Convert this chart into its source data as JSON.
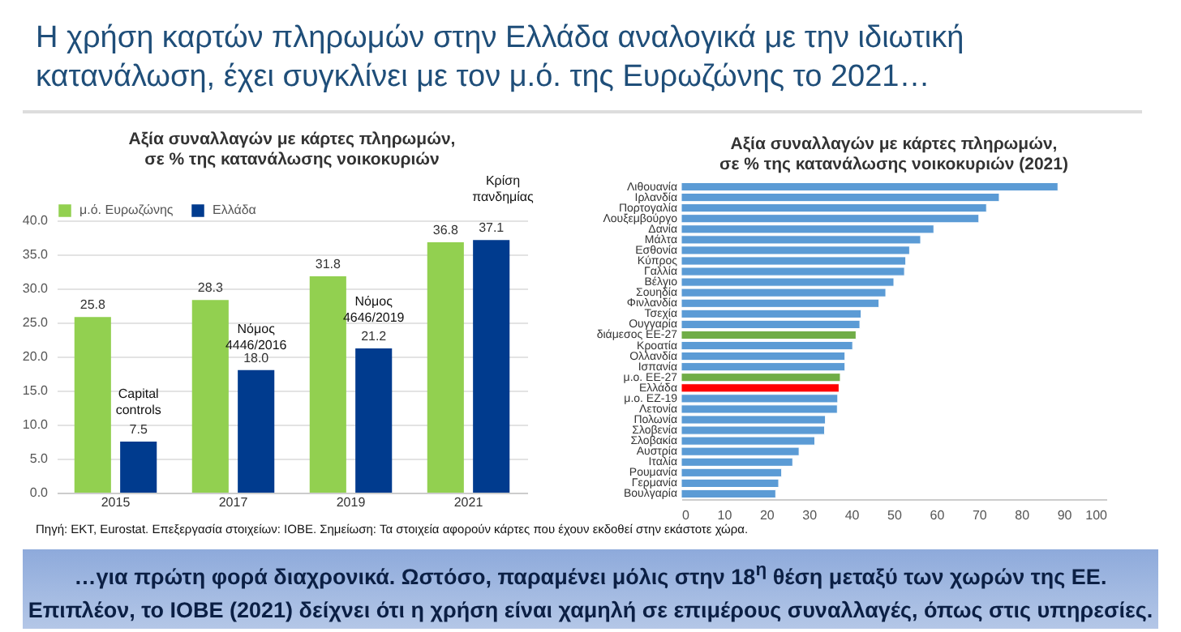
{
  "chart_data": [
    {
      "type": "bar",
      "title": "Αξία συναλλαγών με κάρτες πληρωμών,\nσε % της κατανάλωσης νοικοκυριών",
      "categories": [
        "2015",
        "2017",
        "2019",
        "2021"
      ],
      "series": [
        {
          "name": "μ.ό. Ευρωζώνης",
          "color": "#92d050",
          "values": [
            25.8,
            28.3,
            31.8,
            36.8
          ],
          "value_labels": [
            "25.8",
            "28.3",
            "31.8",
            "36.8"
          ]
        },
        {
          "name": "Ελλάδα",
          "color": "#003b8e",
          "values": [
            7.5,
            18.0,
            21.2,
            37.1
          ],
          "value_labels": [
            "7.5",
            "18.0",
            "21.2",
            "37.1"
          ]
        }
      ],
      "ylim": [
        0,
        40
      ],
      "yticks": [
        {
          "value": 0,
          "label": "0.0"
        },
        {
          "value": 5,
          "label": "5.0"
        },
        {
          "value": 10,
          "label": "10.0"
        },
        {
          "value": 15,
          "label": "15.0"
        },
        {
          "value": 20,
          "label": "20.0"
        },
        {
          "value": 25,
          "label": "25.0"
        },
        {
          "value": 30,
          "label": "30.0"
        },
        {
          "value": 35,
          "label": "35.0"
        },
        {
          "value": 40,
          "label": "40.0"
        }
      ],
      "grid": "y",
      "legend": "top",
      "annotations": [
        {
          "text": "Capital controls",
          "x": "2015",
          "y": 13
        },
        {
          "text": "Νόμος 4446/2016",
          "x": "2017",
          "y": 22.5
        },
        {
          "text": "Νόμος 4646/2019",
          "x": "2019",
          "y": 26.5
        },
        "Η χρήση καρτών πληρωμών στην Ελλάδα αναλογικά με την ιδιωτική κατανάλωση, έχει συγκλίνει με τον μ.ό. της Ευρωζώνης το 2021…",
        "Πηγή: ΕΚΤ, Eurostat. Επεξεργασία στοιχείων: ΙΟΒΕ. Σημείωση: Τα στοιχεία αφορούν κάρτες που έχουν εκδοθεί στην εκάστοτε χώρα.",
        "…για πρώτη φορά διαχρονικά. Ωστόσο, παραμένει μόλις στην 18$^{η}$ θέση μεταξύ των χωρών της ΕΕ. Επιπλέον, το ΙΟΒΕ (2021) δείχνει ότι η χρήση είναι χαμηλή σε επιμέρους συναλλαγές, όπως στις υπηρεσίες.",
        "Κρίση πανδημίας"
      ]
    },
    {
      "type": "bar",
      "orientation": "horizontal",
      "title": "Αξία συναλλαγών με κάρτες πληρωμών,\nσε % της κατανάλωσης νοικοκυριών (2021)",
      "categories": [
        "Λιθουανία",
        "Ιρλανδία",
        "Πορτογαλία",
        "Λουξεμβούργο",
        "Δανία",
        "Μάλτα",
        "Εσθονία",
        "Κύπρος",
        "Γαλλία",
        "Βέλγιο",
        "Σουηδία",
        "Φινλανδία",
        "Τσεχία",
        "Ουγγαρία",
        "διάμεσος ΕΕ-27",
        "Κροατία",
        "Ολλανδία",
        "Ισπανία",
        "μ.ο. ΕΕ-27",
        "Ελλάδα",
        "μ.ο. ΕΖ-19",
        "Λετονία",
        "Πολωνία",
        "Σλοβενία",
        "Σλοβακία",
        "Αυστρία",
        "Ιταλία",
        "Ρουμανία",
        "Γερμανία",
        "Βουλγαρία"
      ],
      "values": [
        88.6,
        74.8,
        71.8,
        70.0,
        59.4,
        56.3,
        53.7,
        52.8,
        52.5,
        50.0,
        48.1,
        46.5,
        42.3,
        42.0,
        41.1,
        40.3,
        38.5,
        38.5,
        37.4,
        37.1,
        36.8,
        36.7,
        33.9,
        33.7,
        31.4,
        27.7,
        26.2,
        23.6,
        22.9,
        22.2
      ],
      "colors": [
        "#5b9bd5",
        "#5b9bd5",
        "#5b9bd5",
        "#5b9bd5",
        "#5b9bd5",
        "#5b9bd5",
        "#5b9bd5",
        "#5b9bd5",
        "#5b9bd5",
        "#5b9bd5",
        "#5b9bd5",
        "#5b9bd5",
        "#5b9bd5",
        "#5b9bd5",
        "#70ad47",
        "#5b9bd5",
        "#5b9bd5",
        "#5b9bd5",
        "#70ad47",
        "#ff0000",
        "#5b9bd5",
        "#5b9bd5",
        "#5b9bd5",
        "#5b9bd5",
        "#5b9bd5",
        "#5b9bd5",
        "#5b9bd5",
        "#5b9bd5",
        "#5b9bd5",
        "#5b9bd5"
      ],
      "xlim": [
        0,
        100
      ],
      "xticks": [
        0,
        10,
        20,
        30,
        40,
        50,
        60,
        70,
        80,
        90,
        100
      ]
    }
  ]
}
